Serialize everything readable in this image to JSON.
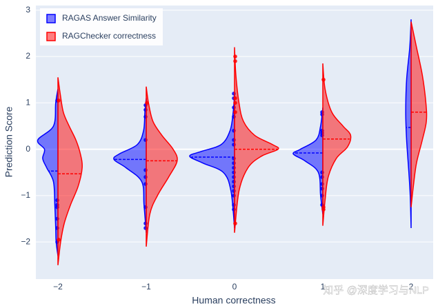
{
  "chart_data": {
    "type": "violin",
    "x_label": "Human correctness",
    "y_label": "Prediction Score",
    "categories": [
      -2,
      -1,
      0,
      1,
      2
    ],
    "xlim": [
      -2.25,
      2.25
    ],
    "ylim": [
      -2.8,
      3.1
    ],
    "xticks": [
      {
        "value": -2,
        "label": "−2"
      },
      {
        "value": -1,
        "label": "−1"
      },
      0,
      1,
      2
    ],
    "yticks": [
      {
        "value": -2,
        "label": "−2"
      },
      {
        "value": -1,
        "label": "−1"
      },
      0,
      1,
      2,
      3
    ],
    "grid": true,
    "legend": "top-left",
    "watermark": "知乎 @深度学习与NLP",
    "series": [
      {
        "name": "RAGAS Answer Similarity",
        "color": "#0000ff",
        "side": "negative",
        "violins": [
          {
            "x": -2,
            "kde_y": [
              1.3,
              1.0,
              0.5,
              0.2,
              0,
              -0.2,
              -0.4,
              -0.7,
              -1.2,
              -1.7,
              -2.0,
              -2.3
            ],
            "kde_d": [
              0,
              0.05,
              0.1,
              0.45,
              0.3,
              0.34,
              0.25,
              0.1,
              0.07,
              0.05,
              0.04,
              0
            ],
            "mean": -0.47,
            "points": [
              1.05,
              -1.1,
              -1.2,
              -1.25,
              -1.5,
              -1.7,
              -2.0
            ]
          },
          {
            "x": -1,
            "kde_y": [
              1.1,
              0.8,
              0.4,
              0.1,
              -0.1,
              -0.22,
              -0.4,
              -0.7,
              -1.2,
              -1.8
            ],
            "kde_d": [
              0,
              0.03,
              0.06,
              0.2,
              0.6,
              0.72,
              0.45,
              0.1,
              0.05,
              0
            ],
            "mean": -0.22,
            "points": [
              0.95,
              0.85,
              0.7,
              0.2,
              -0.45,
              -0.6,
              -0.75,
              -1.25,
              -1.6,
              -1.7
            ]
          },
          {
            "x": 0,
            "kde_y": [
              1.2,
              0.8,
              0.4,
              0.1,
              -0.05,
              -0.15,
              -0.3,
              -0.5,
              -0.9,
              -1.7
            ],
            "kde_d": [
              0,
              0.03,
              0.1,
              0.3,
              0.75,
              1.0,
              0.7,
              0.25,
              0.08,
              0
            ],
            "mean": -0.17,
            "points": [
              1.2,
              1.1,
              0.9,
              0.7,
              0.4,
              0.2,
              0.1,
              -0.2,
              -0.3,
              -0.4,
              -0.5,
              -0.6,
              -0.7,
              -0.8,
              -0.9,
              -1.0,
              -1.2,
              -1.3
            ]
          },
          {
            "x": 1,
            "kde_y": [
              0.9,
              0.5,
              0.2,
              0,
              -0.1,
              -0.25,
              -0.5,
              -1.0,
              -1.4
            ],
            "kde_d": [
              0,
              0.05,
              0.15,
              0.5,
              0.66,
              0.4,
              0.1,
              0.05,
              0
            ],
            "mean": -0.08,
            "points": [
              0.8,
              0.75,
              0.4,
              0.35,
              0.3,
              -0.5,
              -0.6,
              -0.75,
              -0.85,
              -1.0,
              -1.2
            ]
          },
          {
            "x": 2,
            "kde_y": [
              2.8,
              2.2,
              1.5,
              0.8,
              0.2,
              -0.5,
              -1.0,
              -1.7
            ],
            "kde_d": [
              0,
              0.03,
              0.1,
              0.12,
              0.1,
              0.05,
              0.02,
              0
            ],
            "mean": 0.47,
            "points": []
          }
        ]
      },
      {
        "name": "RAGChecker correctness",
        "color": "#ff0000",
        "side": "positive",
        "violins": [
          {
            "x": -2,
            "kde_y": [
              1.55,
              1.2,
              0.8,
              0.5,
              0.2,
              -0.1,
              -0.4,
              -0.8,
              -1.2,
              -1.6,
              -2.0,
              -2.5
            ],
            "kde_d": [
              0,
              0.05,
              0.12,
              0.25,
              0.4,
              0.5,
              0.54,
              0.45,
              0.28,
              0.14,
              0.06,
              0
            ],
            "mean": -0.53,
            "points": [
              1.05,
              -1.95
            ]
          },
          {
            "x": -1,
            "kde_y": [
              1.35,
              1.0,
              0.6,
              0.3,
              0,
              -0.25,
              -0.6,
              -1.0,
              -1.4,
              -2.1
            ],
            "kde_d": [
              0,
              0.05,
              0.15,
              0.35,
              0.6,
              0.69,
              0.5,
              0.25,
              0.08,
              0
            ],
            "mean": -0.25,
            "points": [
              1.0
            ]
          },
          {
            "x": 0,
            "kde_y": [
              2.2,
              1.6,
              1.0,
              0.6,
              0.3,
              0.1,
              0,
              -0.15,
              -0.4,
              -0.9,
              -1.8
            ],
            "kde_d": [
              0,
              0.03,
              0.1,
              0.2,
              0.45,
              0.85,
              0.97,
              0.6,
              0.3,
              0.1,
              0
            ],
            "mean": 0.0,
            "points": [
              2.0,
              1.9,
              1.1,
              1.0,
              0.8,
              -1.6
            ]
          },
          {
            "x": 1,
            "kde_y": [
              1.85,
              1.3,
              0.8,
              0.5,
              0.3,
              0.05,
              -0.2,
              -0.6,
              -1.1,
              -1.65
            ],
            "kde_d": [
              0,
              0.05,
              0.2,
              0.45,
              0.62,
              0.55,
              0.3,
              0.12,
              0.05,
              0
            ],
            "mean": 0.22,
            "points": [
              1.5,
              -1.25,
              -1.3
            ]
          },
          {
            "x": 2,
            "kde_y": [
              2.75,
              2.2,
              1.6,
              1.0,
              0.6,
              0.2,
              -0.3,
              -0.8,
              -1.25
            ],
            "kde_d": [
              0,
              0.12,
              0.25,
              0.33,
              0.34,
              0.25,
              0.12,
              0.05,
              0
            ],
            "mean": 0.8,
            "points": []
          }
        ]
      }
    ]
  }
}
